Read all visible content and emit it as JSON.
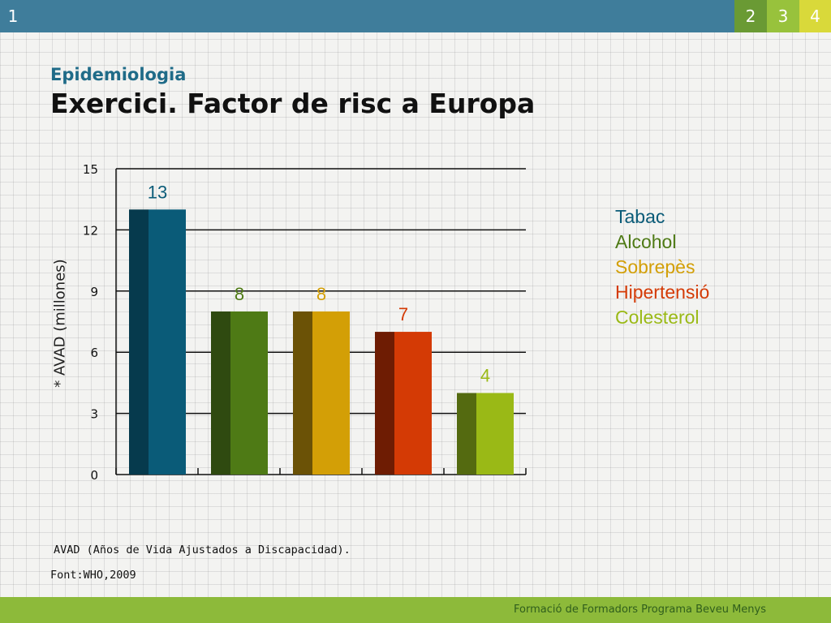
{
  "header": {
    "current_slide": "1",
    "tabs": [
      {
        "label": "2",
        "color": "#6a9a34"
      },
      {
        "label": "3",
        "color": "#98c23c"
      },
      {
        "label": "4",
        "color": "#d9d93a"
      }
    ]
  },
  "subtitle": "Epidemiologia",
  "title": "Exercici. Factor de risc a Europa",
  "legend": [
    {
      "label": "Tabac",
      "color": "#0a5b78"
    },
    {
      "label": "Alcohol",
      "color": "#4e7a15"
    },
    {
      "label": "Sobrepès",
      "color": "#d39f06"
    },
    {
      "label": "Hipertensió",
      "color": "#d43a05"
    },
    {
      "label": "Colesterol",
      "color": "#9ab916"
    }
  ],
  "chart_data": {
    "type": "bar",
    "categories": [
      "Tabac",
      "Alcohol",
      "Sobrepès",
      "Hipertensió",
      "Colesterol"
    ],
    "values": [
      13,
      8,
      8,
      7,
      4
    ],
    "data_labels": [
      "13",
      "8",
      "8",
      "7",
      "4"
    ],
    "colors": [
      "#0a5b78",
      "#4e7a15",
      "#d39f06",
      "#d43a05",
      "#9ab916"
    ],
    "shade_colors": [
      "#063a4d",
      "#2f4a10",
      "#6b5206",
      "#6e1c03",
      "#546a10"
    ],
    "label_colors": [
      "#0a5b78",
      "#4e7a15",
      "#d39f06",
      "#d43a05",
      "#9ab916"
    ],
    "ylabel": "* AVAD (millones)",
    "ylim": [
      0,
      15
    ],
    "yticks": [
      0,
      3,
      6,
      9,
      12,
      15
    ],
    "grid": true
  },
  "note": "AVAD (Años de Vida Ajustados a Discapacidad).",
  "source": "Font:WHO,2009",
  "footer": "Formació de Formadors Programa Beveu Menys"
}
